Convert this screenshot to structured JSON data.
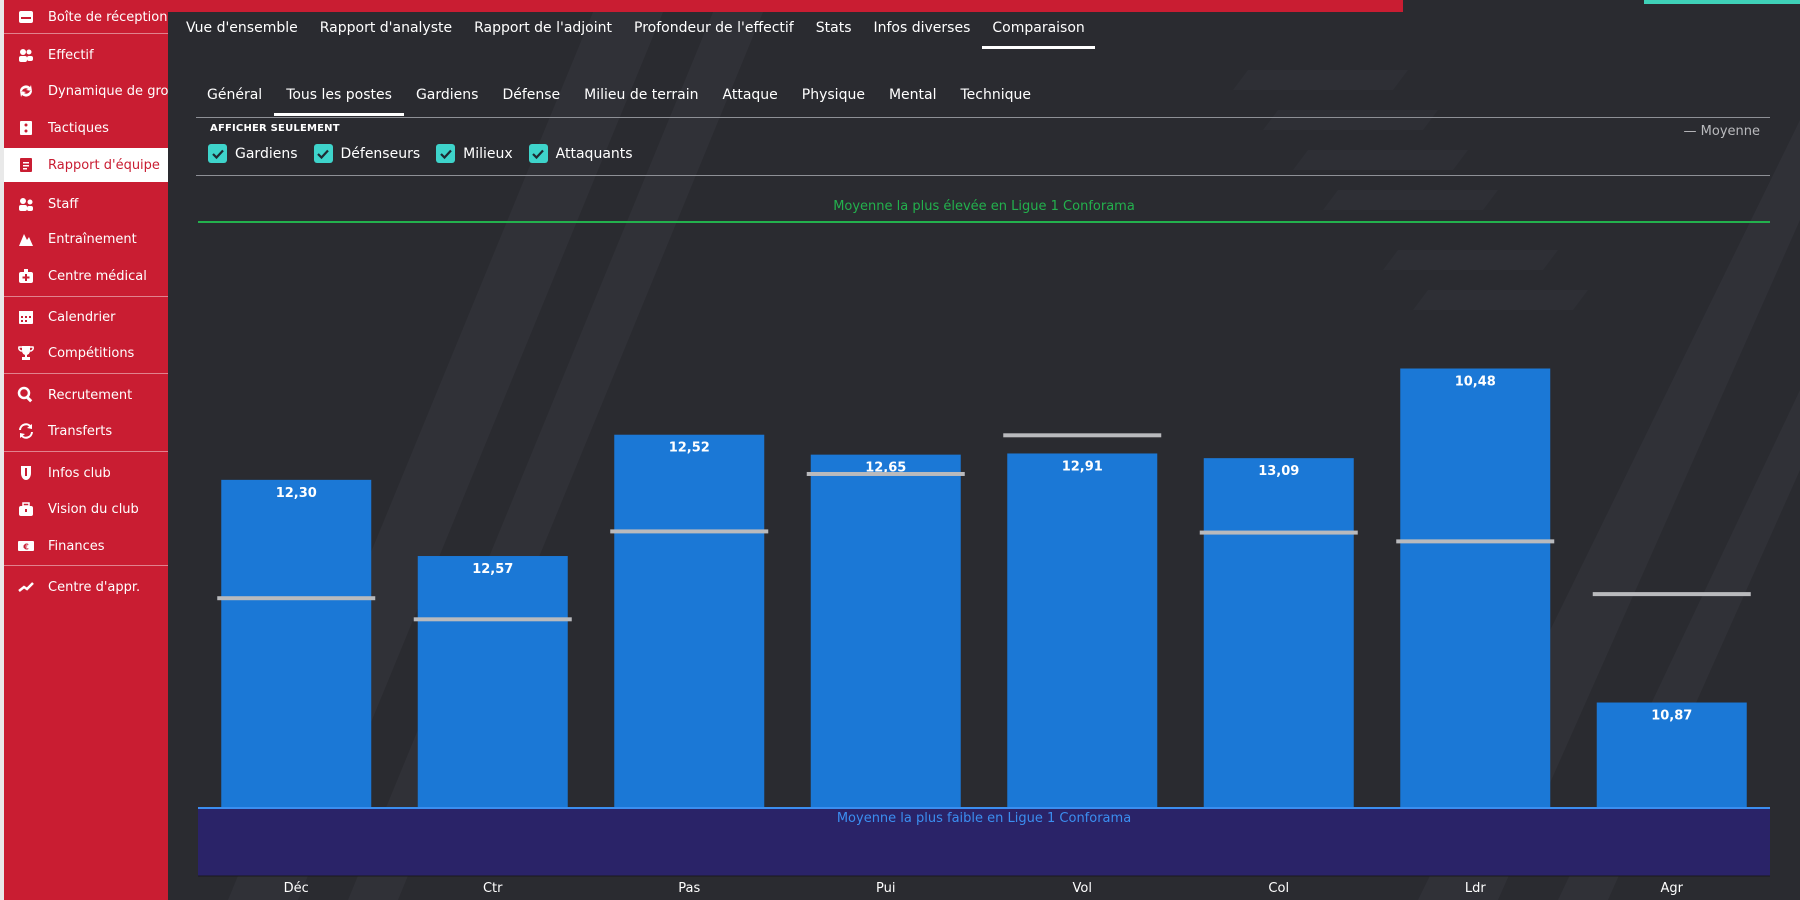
{
  "sidebar": {
    "items": [
      {
        "label": "Boîte de réception",
        "icon": "inbox-icon"
      },
      {
        "label": "Effectif",
        "icon": "players-icon"
      },
      {
        "label": "Dynamique de grou...",
        "icon": "dynamics-icon"
      },
      {
        "label": "Tactiques",
        "icon": "tactics-icon"
      },
      {
        "label": "Rapport d'équipe",
        "icon": "report-icon"
      },
      {
        "label": "Staff",
        "icon": "staff-icon"
      },
      {
        "label": "Entraînement",
        "icon": "training-icon"
      },
      {
        "label": "Centre médical",
        "icon": "medical-icon"
      },
      {
        "label": "Calendrier",
        "icon": "calendar-icon"
      },
      {
        "label": "Compétitions",
        "icon": "trophy-icon"
      },
      {
        "label": "Recrutement",
        "icon": "search-icon"
      },
      {
        "label": "Transferts",
        "icon": "transfer-icon"
      },
      {
        "label": "Infos club",
        "icon": "club-shield-icon"
      },
      {
        "label": "Vision du club",
        "icon": "briefcase-icon"
      },
      {
        "label": "Finances",
        "icon": "money-icon"
      },
      {
        "label": "Centre d'appr.",
        "icon": "development-icon"
      }
    ],
    "active_index": 4
  },
  "main_tabs": [
    "Vue d'ensemble",
    "Rapport d'analyste",
    "Rapport de l'adjoint",
    "Profondeur de l'effectif",
    "Stats",
    "Infos diverses",
    "Comparaison"
  ],
  "main_tab_active": 6,
  "sub_tabs": [
    "Général",
    "Tous les postes",
    "Gardiens",
    "Défense",
    "Milieu de terrain",
    "Attaque",
    "Physique",
    "Mental",
    "Technique"
  ],
  "sub_tab_active": 1,
  "filter": {
    "label": "AFFICHER SEULEMENT",
    "options": [
      "Gardiens",
      "Défenseurs",
      "Milieux",
      "Attaquants"
    ],
    "legend": "— Moyenne"
  },
  "colors": {
    "sidebar": "#c91d32",
    "bar": "#1b78d6",
    "highest_line": "#23b14d",
    "lowest_line": "#3b8ef0",
    "check": "#3ed4cb",
    "average_marker": "#b9babd"
  },
  "chart_data": {
    "type": "bar",
    "categories": [
      "Déc",
      "Ctr",
      "Pas",
      "Pui",
      "Vol",
      "Col",
      "Ldr",
      "Agr"
    ],
    "values": [
      12.3,
      12.57,
      12.52,
      12.65,
      12.91,
      13.09,
      10.48,
      10.87
    ],
    "value_labels": [
      "12,30",
      "12,57",
      "12,52",
      "12,65",
      "12,91",
      "13,09",
      "10,48",
      "10,87"
    ],
    "bar_fill": [
      0.56,
      0.43,
      0.637,
      0.603,
      0.605,
      0.597,
      0.75,
      0.18
    ],
    "average_marker": [
      0.358,
      0.322,
      0.472,
      0.57,
      0.636,
      0.47,
      0.455,
      0.365
    ],
    "reference_lines": {
      "highest": "Moyenne la plus élevée en Ligue 1 Conforama",
      "lowest": "Moyenne la plus faible en Ligue 1 Conforama"
    },
    "legend": "— Moyenne",
    "grid": false
  }
}
